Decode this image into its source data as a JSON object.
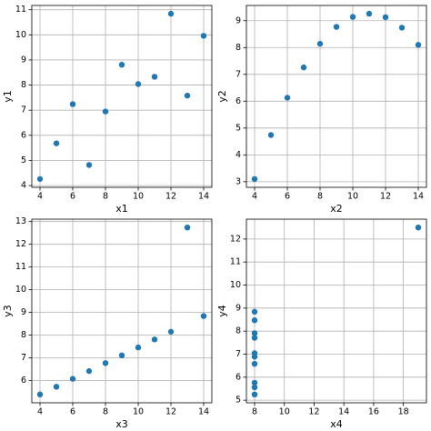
{
  "chart_data": [
    {
      "type": "scatter",
      "xlabel": "x1",
      "ylabel": "y1",
      "color": "#1f77b4",
      "grid": true,
      "x": [
        10,
        8,
        13,
        9,
        11,
        14,
        6,
        4,
        12,
        7,
        5
      ],
      "values": [
        8.04,
        6.95,
        7.58,
        8.81,
        8.33,
        9.96,
        7.24,
        4.26,
        10.84,
        4.82,
        5.68
      ],
      "xlim": [
        3.5,
        14.5
      ],
      "ylim": [
        3.931,
        11.169
      ],
      "xticks": [
        4,
        6,
        8,
        10,
        12,
        14
      ],
      "yticks": [
        4,
        5,
        6,
        7,
        8,
        9,
        10,
        11
      ]
    },
    {
      "type": "scatter",
      "xlabel": "x2",
      "ylabel": "y2",
      "color": "#1f77b4",
      "grid": true,
      "x": [
        10,
        8,
        13,
        9,
        11,
        14,
        6,
        4,
        12,
        7,
        5
      ],
      "values": [
        9.14,
        8.14,
        8.74,
        8.77,
        9.26,
        8.1,
        6.13,
        3.1,
        9.13,
        7.26,
        4.74
      ],
      "xlim": [
        3.5,
        14.5
      ],
      "ylim": [
        2.792,
        9.568
      ],
      "xticks": [
        4,
        6,
        8,
        10,
        12,
        14
      ],
      "yticks": [
        3,
        4,
        5,
        6,
        7,
        8,
        9
      ]
    },
    {
      "type": "scatter",
      "xlabel": "x3",
      "ylabel": "y3",
      "color": "#1f77b4",
      "grid": true,
      "x": [
        10,
        8,
        13,
        9,
        11,
        14,
        6,
        4,
        12,
        7,
        5
      ],
      "values": [
        7.46,
        6.77,
        12.74,
        7.11,
        7.81,
        8.84,
        6.08,
        5.39,
        8.15,
        6.42,
        5.73
      ],
      "xlim": [
        3.5,
        14.5
      ],
      "ylim": [
        5.0225,
        13.1075
      ],
      "xticks": [
        4,
        6,
        8,
        10,
        12,
        14
      ],
      "yticks": [
        6,
        7,
        8,
        9,
        10,
        11,
        12,
        13
      ]
    },
    {
      "type": "scatter",
      "xlabel": "x4",
      "ylabel": "y4",
      "color": "#1f77b4",
      "grid": true,
      "x": [
        8,
        8,
        8,
        8,
        8,
        8,
        8,
        19,
        8,
        8,
        8
      ],
      "values": [
        6.58,
        5.76,
        7.71,
        8.84,
        8.47,
        7.04,
        5.25,
        12.5,
        5.56,
        7.91,
        6.89
      ],
      "xlim": [
        7.45,
        19.55
      ],
      "ylim": [
        4.8875,
        12.8625
      ],
      "xticks": [
        8,
        10,
        12,
        14,
        16,
        18
      ],
      "yticks": [
        5,
        6,
        7,
        8,
        9,
        10,
        11,
        12
      ]
    }
  ]
}
